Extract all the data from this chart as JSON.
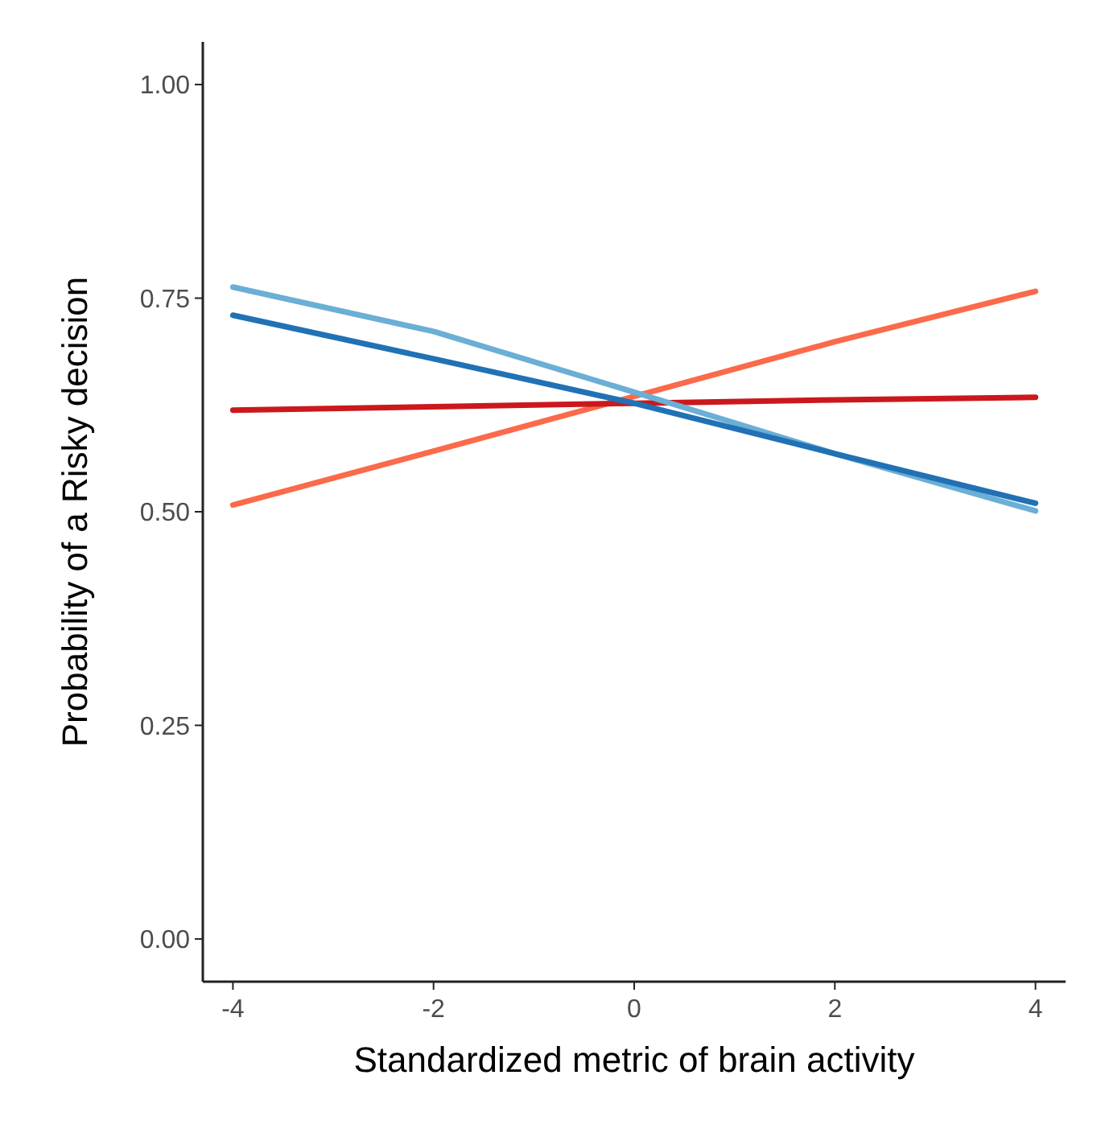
{
  "chart_data": {
    "type": "line",
    "xlabel": "Standardized metric of brain activity",
    "ylabel": "Probability of a Risky decision",
    "x": [
      -4,
      -2,
      0,
      2,
      4
    ],
    "series": [
      {
        "color": "#fb6a4a",
        "values": [
          0.508,
          0.571,
          0.635,
          0.699,
          0.758
        ]
      },
      {
        "color": "#cb181d",
        "values": [
          0.619,
          0.623,
          0.627,
          0.631,
          0.634
        ]
      },
      {
        "color": "#6baed6",
        "values": [
          0.763,
          0.711,
          0.64,
          0.568,
          0.501
        ]
      },
      {
        "color": "#2171b5",
        "values": [
          0.73,
          0.679,
          0.627,
          0.568,
          0.51
        ]
      }
    ],
    "xlim": [
      -4.3,
      4.3
    ],
    "xticks": [
      -4,
      -2,
      0,
      2,
      4
    ],
    "ylim": [
      -0.05,
      1.05
    ],
    "yticks": [
      {
        "value": 0,
        "label": "0.00"
      },
      {
        "value": 0.25,
        "label": "0.25"
      },
      {
        "value": 0.5,
        "label": "0.50"
      },
      {
        "value": 0.75,
        "label": "0.75"
      },
      {
        "value": 1,
        "label": "1.00"
      }
    ],
    "grid": false
  }
}
